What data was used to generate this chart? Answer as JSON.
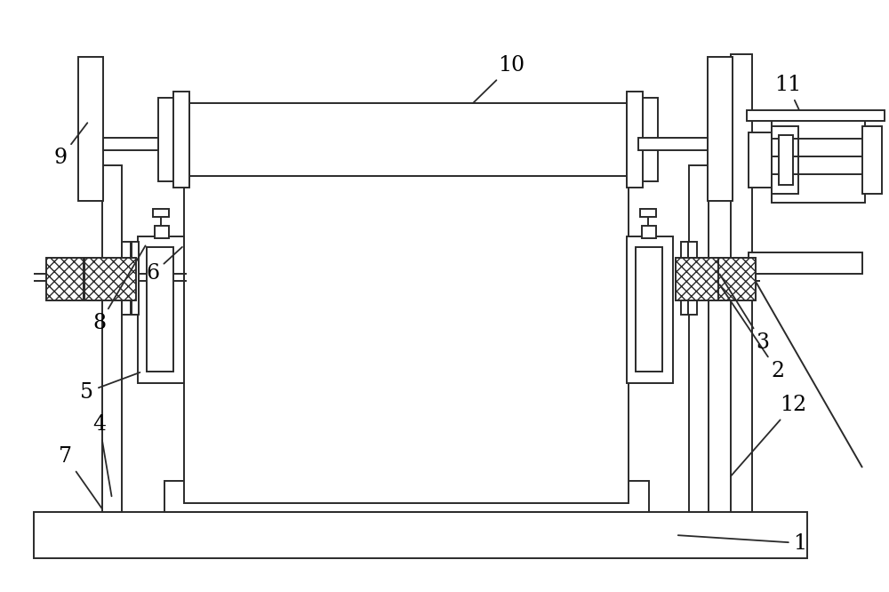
{
  "fig_width": 10.0,
  "fig_height": 6.66,
  "dpi": 100,
  "line_color": "#2a2a2a",
  "bg_color": "#ffffff",
  "lw": 1.4
}
